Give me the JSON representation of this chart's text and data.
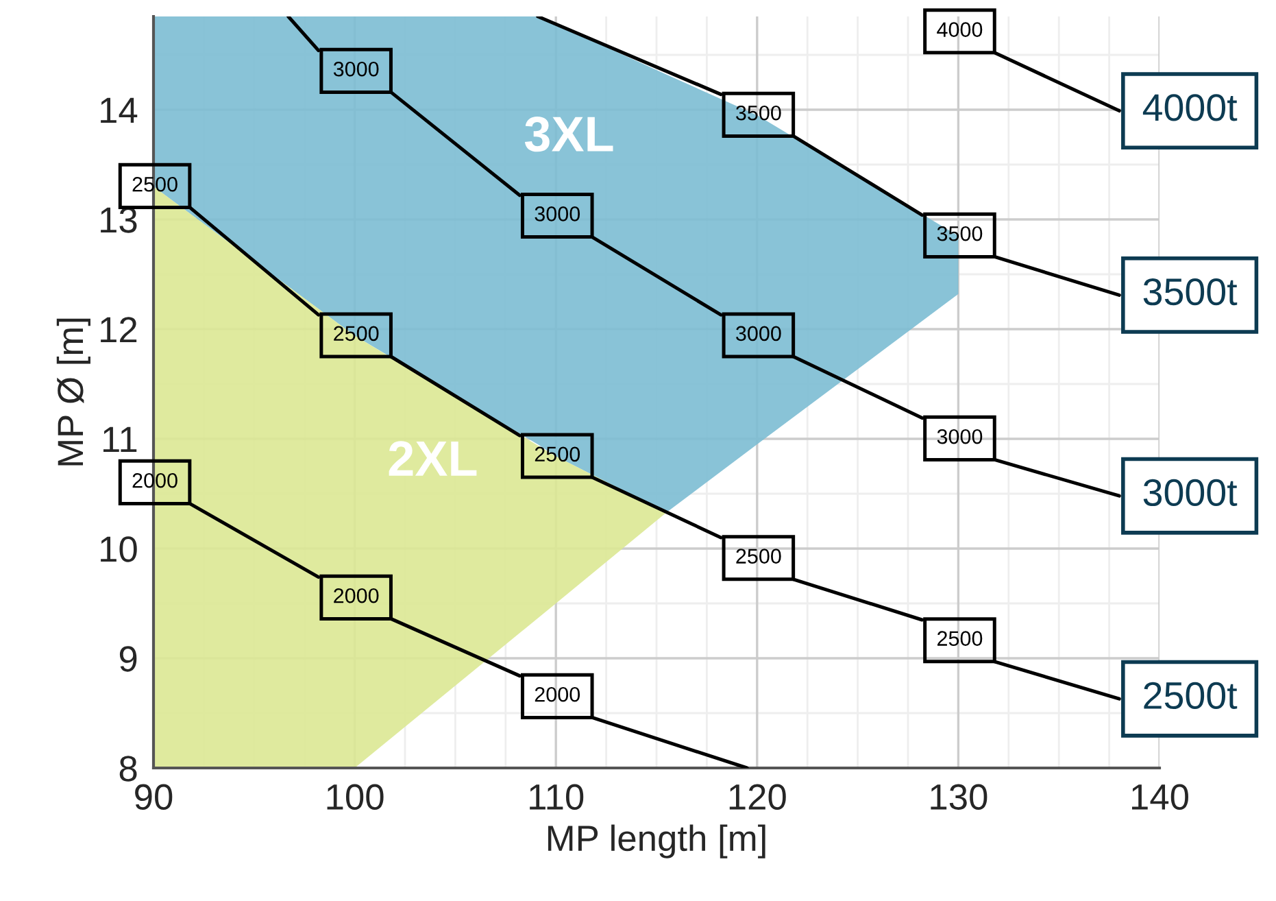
{
  "chart_data": {
    "type": "line",
    "xlabel": "MP length [m]",
    "ylabel": "MP Ø [m]",
    "xlim": [
      90,
      140
    ],
    "xticks": [
      90,
      100,
      110,
      120,
      130,
      140
    ],
    "ylim": [
      8,
      14.85
    ],
    "yticks": [
      8,
      9,
      10,
      11,
      12,
      13,
      14
    ],
    "grid": true,
    "marker": "none",
    "line_style": "solid",
    "series": [
      {
        "type": "area",
        "color": "#7cbcd3",
        "x": [
          90,
          100,
          109.1,
          110,
          115.5,
          120,
          130
        ],
        "values": [
          null,
          null,
          null,
          null,
          null,
          null,
          null
        ],
        "upper": [
          14.85,
          14.85,
          14.85,
          14.78,
          14.32,
          13.95,
          12.85
        ],
        "lower": [
          13.3,
          11.94,
          10.95,
          10.84,
          10.33,
          10.95,
          12.32
        ]
      },
      {
        "type": "area",
        "color": "#dbe893",
        "x": [
          90,
          100,
          110,
          115.5
        ],
        "values": [
          null,
          null,
          null,
          null
        ],
        "upper": [
          13.3,
          11.94,
          10.84,
          10.33
        ],
        "lower": [
          8,
          8,
          9.5,
          10.33
        ]
      },
      {
        "name": "2500t",
        "color": "#000000",
        "x": [
          91.8,
          98.2,
          100,
          101.8,
          108.2,
          110,
          111.8,
          118.2,
          120,
          121.8,
          128.2,
          130,
          131.8,
          138
        ],
        "values": [
          13.11,
          12.13,
          null,
          11.75,
          11.03,
          null,
          10.65,
          10.1,
          null,
          9.72,
          9.35,
          null,
          8.97,
          8.63
        ]
      },
      {
        "name": "3000t",
        "color": "#000000",
        "x": [
          96.7,
          98.2,
          100,
          101.8,
          108.2,
          110,
          111.8,
          118.2,
          120,
          121.8,
          128.2,
          130,
          131.8,
          138
        ],
        "values": [
          14.85,
          14.54,
          null,
          14.16,
          13.22,
          null,
          12.84,
          12.13,
          null,
          11.75,
          11.19,
          null,
          10.81,
          10.48
        ]
      },
      {
        "name": "3500t",
        "color": "#000000",
        "x": [
          109.1,
          118.2,
          120,
          121.8,
          128.2,
          130,
          131.8,
          138
        ],
        "values": [
          14.85,
          14.14,
          null,
          13.76,
          13.04,
          null,
          12.66,
          12.31
        ]
      },
      {
        "name": "4000t",
        "color": "#000000",
        "x": [
          131.8,
          138
        ],
        "values": [
          14.52,
          13.99
        ]
      },
      {
        "color": "#000000",
        "x": [
          91.8,
          98.2,
          100,
          101.8,
          108.2,
          110,
          111.8,
          119.5
        ],
        "values": [
          10.41,
          9.74,
          null,
          9.36,
          8.84,
          null,
          8.46,
          8.0
        ]
      }
    ],
    "annotations": [
      "3XL",
      "2XL",
      {
        "text": "2000",
        "x": 91.8,
        "y": 10.41
      },
      {
        "text": "2000",
        "x": 101.8,
        "y": 9.36
      },
      {
        "text": "2000",
        "x": 111.8,
        "y": 8.46
      },
      {
        "text": "2500",
        "x": 91.8,
        "y": 13.11
      },
      {
        "text": "2500",
        "x": 101.8,
        "y": 11.75
      },
      {
        "text": "2500",
        "x": 111.8,
        "y": 10.65
      },
      {
        "text": "2500",
        "x": 121.8,
        "y": 9.72
      },
      {
        "text": "2500",
        "x": 131.8,
        "y": 8.97
      },
      {
        "text": "3000",
        "x": 101.8,
        "y": 14.16
      },
      {
        "text": "3000",
        "x": 111.8,
        "y": 12.84
      },
      {
        "text": "3000",
        "x": 121.8,
        "y": 11.75
      },
      {
        "text": "3000",
        "x": 131.8,
        "y": 10.81
      },
      {
        "text": "3500",
        "x": 121.8,
        "y": 13.76
      },
      {
        "text": "3500",
        "x": 131.8,
        "y": 12.66
      },
      {
        "text": "4000",
        "x": 131.8,
        "y": 14.52
      }
    ]
  }
}
